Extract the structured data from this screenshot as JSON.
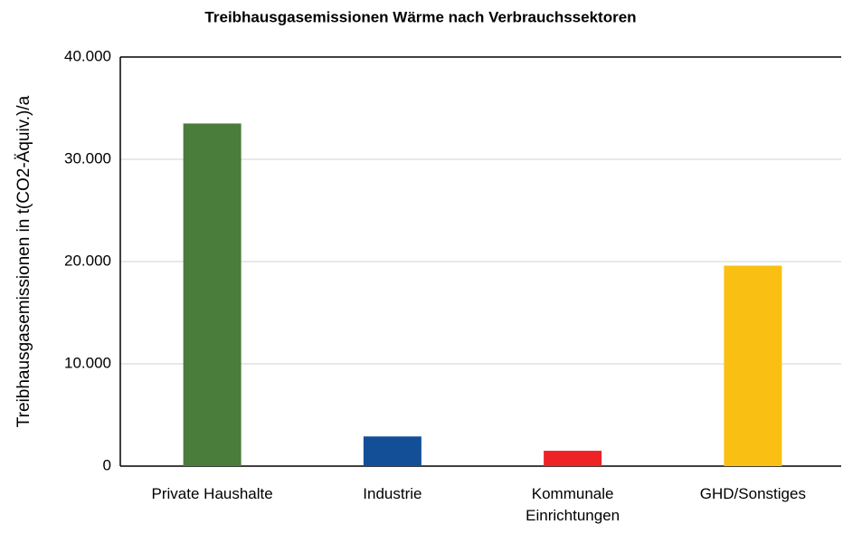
{
  "chart_data": {
    "type": "bar",
    "title": "Treibhausgasemissionen Wärme nach Verbrauchssektoren",
    "y_label": "Treibhausgasemissionen in t(CO2-Äquiv.)/a",
    "categories": [
      "Private Haushalte",
      "Industrie",
      "Kommunale\nEinrichtungen",
      "GHD/Sonstiges"
    ],
    "values": [
      33500,
      2900,
      1500,
      19600
    ],
    "colors": [
      "#4a7c3b",
      "#134f97",
      "#ee2326",
      "#f9c013"
    ],
    "ylim": [
      0,
      40000
    ],
    "yticks": [
      0,
      {
        "value": 10000,
        "label": "10.000"
      },
      {
        "value": 20000,
        "label": "20.000"
      },
      {
        "value": 30000,
        "label": "30.000"
      },
      {
        "value": 40000,
        "label": "40.000"
      }
    ],
    "grid": true
  }
}
